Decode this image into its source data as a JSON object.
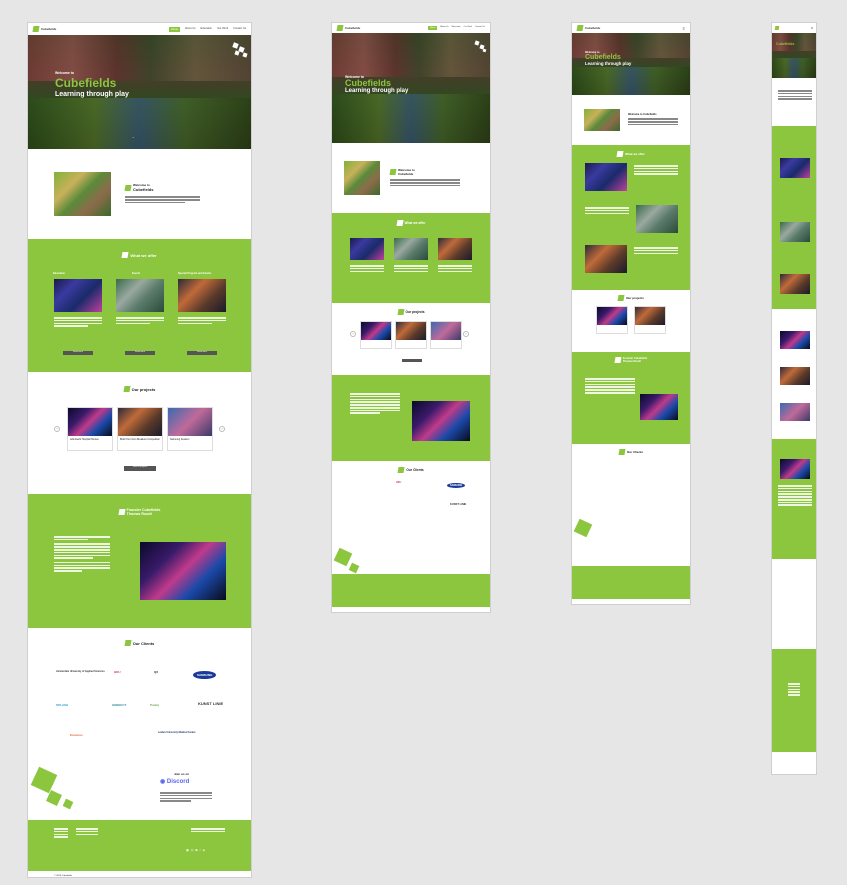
{
  "site": {
    "logo_text": "Cubefields",
    "nav": [
      "Home",
      "About Us",
      "Education",
      "Our Work",
      "Contact Us"
    ],
    "hero_small": "Welcome to",
    "hero_title": "Cubefields",
    "hero_sub": "Learning through play"
  },
  "welcome": {
    "line1": "Welcome to",
    "line2": "Cubefields"
  },
  "offer": {
    "title": "What we offer",
    "items": [
      "Education",
      "Events",
      "Special Projects and Events"
    ],
    "button": "Read more"
  },
  "projects": {
    "title": "Our projects",
    "items": [
      "Admiraal's Hospital Heroes",
      "Build Your Own Breakout Competition",
      "Samsung Session"
    ],
    "button": "View all projects"
  },
  "founder": {
    "line1": "Founder Cubefields",
    "line2": "Thomas Roodt"
  },
  "clients": {
    "title": "Our Clients",
    "names": [
      "Amsterdam University of Applied Sciences",
      "HKU",
      "Q2",
      "SAMSUNG",
      "SPLASH",
      "GREEN IT",
      "Trusty",
      "KUNST LINIE",
      "Erasmus",
      "Leiden University Medical Center"
    ]
  },
  "discord": {
    "join": "Join us on",
    "name": "Discord"
  },
  "footer": {
    "copy": "© 2024 Cubefields"
  },
  "colors": {
    "brand_green": "#8cc63f",
    "background": "#e6e6e6"
  }
}
